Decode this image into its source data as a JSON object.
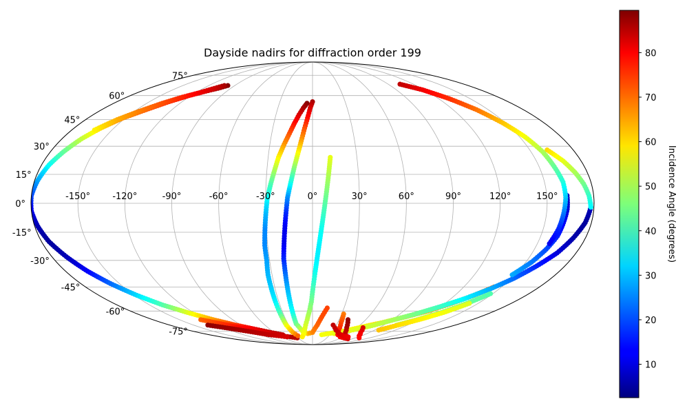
{
  "chart_data": {
    "type": "scatter",
    "projection": "mollweide",
    "title": "Dayside nadirs for diffraction order 199",
    "grid": true,
    "longitude_ticks": [
      "-150°",
      "-120°",
      "-90°",
      "-60°",
      "-30°",
      "0°",
      "30°",
      "60°",
      "90°",
      "120°",
      "150°"
    ],
    "longitude_tick_values": [
      -150,
      -120,
      -90,
      -60,
      -30,
      0,
      30,
      60,
      90,
      120,
      150
    ],
    "latitude_ticks": [
      "75°",
      "60°",
      "45°",
      "30°",
      "15°",
      "0°",
      "-15°",
      "-30°",
      "-45°",
      "-60°",
      "-75°"
    ],
    "latitude_tick_values": [
      75,
      60,
      45,
      30,
      15,
      0,
      -15,
      -30,
      -45,
      -60,
      -75
    ],
    "colorbar": {
      "label": "Incidence Angle (degrees)",
      "colormap": "jet",
      "range": [
        2.5,
        89.5
      ],
      "ticks": [
        "10",
        "20",
        "30",
        "40",
        "50",
        "60",
        "70",
        "80"
      ],
      "tick_values": [
        10,
        20,
        30,
        40,
        50,
        60,
        70,
        80
      ]
    },
    "series": [
      {
        "points": [
          [
            -98,
            67,
            89
          ],
          [
            -104,
            65,
            86
          ],
          [
            -112,
            63,
            83
          ],
          [
            -122,
            60,
            79
          ],
          [
            -132,
            56,
            75
          ],
          [
            -142,
            51,
            71
          ],
          [
            -152,
            46,
            67
          ],
          [
            -160,
            40,
            60
          ],
          [
            -166,
            34,
            52
          ],
          [
            -171,
            27,
            44
          ],
          [
            -175,
            20,
            36
          ],
          [
            -178,
            12,
            28
          ],
          [
            -180,
            4,
            20
          ],
          [
            -180,
            -4,
            12
          ],
          [
            -178,
            -12,
            7
          ],
          [
            -175,
            -20,
            5
          ],
          [
            -170,
            -28,
            7
          ],
          [
            -164,
            -36,
            13
          ],
          [
            -157,
            -43,
            22
          ],
          [
            -148,
            -50,
            32
          ],
          [
            -138,
            -56,
            42
          ],
          [
            -126,
            -61,
            54
          ],
          [
            -112,
            -66,
            65
          ],
          [
            -97,
            -70,
            74
          ],
          [
            -82,
            -73,
            80
          ],
          [
            -66,
            -76,
            84
          ],
          [
            -52,
            -78,
            84
          ]
        ]
      },
      {
        "points": [
          [
            -102,
            67,
            86
          ],
          [
            -108,
            65,
            83
          ],
          [
            -116,
            62,
            80
          ],
          [
            -126,
            59,
            76
          ],
          [
            -136,
            55,
            72
          ],
          [
            -146,
            50,
            68
          ],
          [
            -155,
            45,
            64
          ],
          [
            -163,
            39,
            58
          ]
        ]
      },
      {
        "points": [
          [
            -126,
            -66,
            70
          ],
          [
            -112,
            -69,
            74
          ],
          [
            -98,
            -72,
            78
          ],
          [
            -84,
            -75,
            80
          ],
          [
            -70,
            -77,
            82
          ],
          [
            -56,
            -79,
            84
          ],
          [
            -44,
            -80,
            85
          ],
          [
            -32,
            -81,
            85
          ]
        ]
      },
      {
        "points": [
          [
            -132,
            -70,
            88
          ],
          [
            -118,
            -72,
            87
          ],
          [
            -104,
            -74,
            86
          ],
          [
            -90,
            -76,
            85
          ],
          [
            -76,
            -78,
            84
          ],
          [
            -62,
            -79,
            83
          ],
          [
            -50,
            -80,
            82
          ]
        ]
      },
      {
        "points": [
          [
            -5,
            55,
            89
          ],
          [
            -8,
            52,
            86
          ],
          [
            -11,
            48,
            82
          ],
          [
            -14,
            43,
            78
          ],
          [
            -17,
            37,
            72
          ],
          [
            -20,
            31,
            66
          ],
          [
            -23,
            24,
            58
          ],
          [
            -25,
            17,
            50
          ],
          [
            -27,
            10,
            42
          ],
          [
            -29,
            2,
            35
          ],
          [
            -30,
            -6,
            29
          ],
          [
            -31,
            -14,
            25
          ],
          [
            -32,
            -22,
            25
          ],
          [
            -32,
            -30,
            27
          ],
          [
            -33,
            -38,
            29
          ],
          [
            -33,
            -46,
            31
          ],
          [
            -33,
            -54,
            34
          ],
          [
            -33,
            -62,
            42
          ],
          [
            -33,
            -70,
            55
          ],
          [
            -31,
            -76,
            64
          ],
          [
            -27,
            -79,
            70
          ]
        ]
      },
      {
        "points": [
          [
            0,
            56,
            86
          ],
          [
            -2,
            52,
            82
          ],
          [
            -4,
            46,
            78
          ],
          [
            -6,
            40,
            72
          ],
          [
            -8,
            33,
            65
          ],
          [
            -10,
            26,
            57
          ],
          [
            -12,
            19,
            48
          ],
          [
            -14,
            11,
            38
          ],
          [
            -16,
            3,
            26
          ],
          [
            -17,
            -5,
            17
          ],
          [
            -18,
            -13,
            12
          ],
          [
            -19,
            -21,
            12
          ],
          [
            -20,
            -29,
            16
          ],
          [
            -20,
            -37,
            22
          ],
          [
            -20,
            -45,
            28
          ],
          [
            -20,
            -53,
            32
          ],
          [
            -20,
            -61,
            36
          ],
          [
            -20,
            -69,
            44
          ],
          [
            -15,
            -75,
            54
          ],
          [
            -8,
            -77,
            62
          ],
          [
            0,
            -76,
            67
          ],
          [
            6,
            -70,
            70
          ],
          [
            10,
            -64,
            72
          ],
          [
            14,
            -58,
            73
          ]
        ]
      },
      {
        "points": [
          [
            12,
            24,
            55
          ],
          [
            11,
            18,
            52
          ],
          [
            10,
            12,
            49
          ],
          [
            9,
            6,
            46
          ],
          [
            8,
            0,
            43
          ],
          [
            7,
            -6,
            40
          ],
          [
            6,
            -12,
            37
          ],
          [
            5,
            -18,
            35
          ],
          [
            4,
            -24,
            34
          ],
          [
            3,
            -30,
            34
          ],
          [
            2,
            -36,
            36
          ],
          [
            1,
            -42,
            39
          ],
          [
            0,
            -48,
            42
          ],
          [
            -1,
            -54,
            45
          ],
          [
            -3,
            -60,
            48
          ],
          [
            -6,
            -66,
            51
          ],
          [
            -10,
            -72,
            54
          ],
          [
            -14,
            -77,
            56
          ],
          [
            -20,
            -80,
            58
          ]
        ]
      },
      {
        "points": [
          [
            144,
            -45,
            70
          ],
          [
            136,
            -50,
            68
          ],
          [
            126,
            -55,
            66
          ],
          [
            114,
            -60,
            64
          ],
          [
            100,
            -64,
            62
          ],
          [
            84,
            -68,
            60
          ],
          [
            68,
            -71,
            58
          ],
          [
            52,
            -74,
            57
          ],
          [
            38,
            -76,
            56
          ],
          [
            26,
            -77,
            56
          ],
          [
            16,
            -78,
            56
          ]
        ]
      },
      {
        "points": [
          [
            178,
            -2,
            8
          ],
          [
            176,
            -10,
            5
          ],
          [
            172,
            -18,
            6
          ],
          [
            167,
            -26,
            10
          ],
          [
            160,
            -33,
            16
          ],
          [
            152,
            -40,
            22
          ],
          [
            143,
            -46,
            28
          ],
          [
            132,
            -52,
            34
          ],
          [
            120,
            -57,
            40
          ],
          [
            106,
            -62,
            45
          ],
          [
            92,
            -66,
            49
          ],
          [
            78,
            -70,
            52
          ],
          [
            64,
            -73,
            54
          ],
          [
            50,
            -75,
            55
          ],
          [
            36,
            -77,
            55
          ]
        ]
      },
      {
        "points": [
          [
            162,
            28,
            60
          ],
          [
            168,
            22,
            55
          ],
          [
            172,
            16,
            50
          ],
          [
            175,
            10,
            45
          ],
          [
            177,
            4,
            40
          ],
          [
            178,
            -2,
            35
          ]
        ]
      },
      {
        "points": [
          [
            148,
            -38,
            28
          ],
          [
            154,
            -31,
            24
          ],
          [
            158,
            -24,
            20
          ],
          [
            161,
            -17,
            16
          ],
          [
            162,
            -10,
            13
          ],
          [
            163,
            -3,
            10
          ],
          [
            163,
            4,
            8
          ]
        ]
      },
      {
        "points": [
          [
            104,
            68,
            84
          ],
          [
            118,
            64,
            80
          ],
          [
            130,
            58,
            75
          ],
          [
            140,
            51,
            69
          ],
          [
            148,
            43,
            62
          ],
          [
            154,
            35,
            56
          ],
          [
            158,
            27,
            50
          ],
          [
            160,
            19,
            44
          ],
          [
            162,
            11,
            38
          ],
          [
            162,
            3,
            31
          ],
          [
            161,
            -5,
            24
          ],
          [
            160,
            -13,
            17
          ],
          [
            158,
            -21,
            12
          ]
        ]
      },
      {
        "points": [
          [
            32,
            -62,
            68
          ],
          [
            34,
            -68,
            72
          ],
          [
            38,
            -74,
            76
          ],
          [
            44,
            -78,
            78
          ],
          [
            54,
            -80,
            79
          ],
          [
            66,
            -81,
            80
          ],
          [
            80,
            -82,
            81
          ]
        ]
      },
      {
        "points": [
          [
            40,
            -66,
            88
          ],
          [
            46,
            -72,
            86
          ],
          [
            52,
            -76,
            84
          ],
          [
            62,
            -79,
            83
          ],
          [
            74,
            -81,
            82
          ]
        ]
      },
      {
        "points": [
          [
            26,
            -70,
            84
          ],
          [
            34,
            -74,
            83
          ],
          [
            44,
            -77,
            82
          ],
          [
            56,
            -79,
            81
          ],
          [
            70,
            -80,
            80
          ]
        ]
      },
      {
        "points": [
          [
            68,
            -72,
            82
          ],
          [
            76,
            -76,
            80
          ],
          [
            86,
            -79,
            79
          ],
          [
            98,
            -81,
            78
          ]
        ]
      },
      {
        "points": [
          [
            106,
            -70,
            50
          ],
          [
            118,
            -66,
            48
          ],
          [
            130,
            -61,
            46
          ],
          [
            140,
            -55,
            44
          ],
          [
            148,
            -49,
            42
          ]
        ]
      },
      {
        "points": [
          [
            96,
            -74,
            62
          ],
          [
            108,
            -70,
            60
          ],
          [
            120,
            -66,
            58
          ],
          [
            132,
            -61,
            56
          ],
          [
            142,
            -55,
            54
          ]
        ]
      }
    ]
  }
}
